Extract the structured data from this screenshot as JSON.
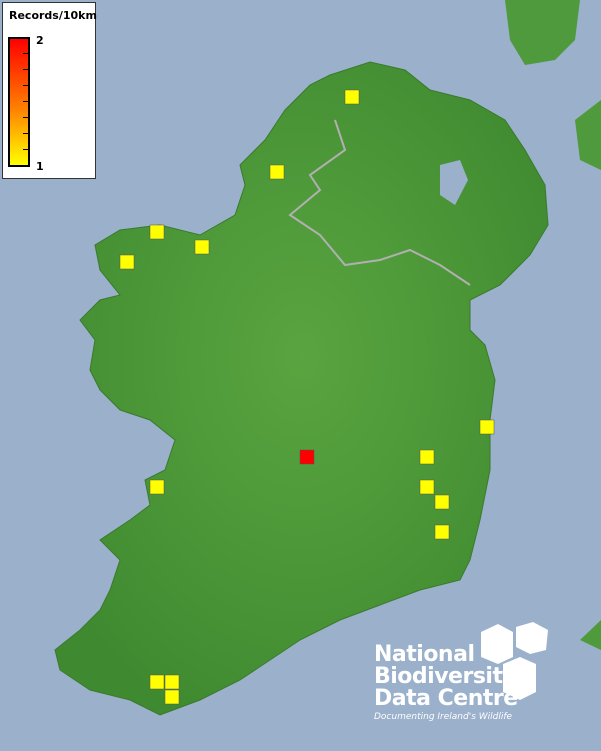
{
  "legend": {
    "title": "Records/10km",
    "max_label": "2",
    "min_label": "1",
    "color_min": "#ffff00",
    "color_max": "#ff0000"
  },
  "records": {
    "values": [
      1,
      1,
      1,
      1,
      1,
      1,
      1,
      2,
      1,
      1,
      1,
      1,
      1,
      1,
      1
    ]
  },
  "logo": {
    "line1": "National",
    "line2": "Biodiversity",
    "line3": "Data Centre",
    "tagline": "Documenting Ireland's Wildlife"
  },
  "colors": {
    "sea": "#9ab0cb",
    "land": "#4f9a3c",
    "border": "#b0b0b0"
  }
}
